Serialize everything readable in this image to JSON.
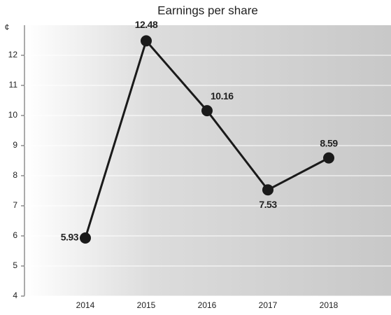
{
  "chart_data": {
    "type": "line",
    "title": "Earnings per share",
    "y_label": "¢",
    "categories": [
      "2014",
      "2015",
      "2016",
      "2017",
      "2018"
    ],
    "series": [
      {
        "name": "Earnings per share",
        "color": "#1a1a1a",
        "values": [
          5.93,
          12.48,
          10.16,
          7.53,
          8.59
        ]
      }
    ],
    "ylim": [
      4,
      13
    ],
    "yticks": [
      4,
      5,
      6,
      7,
      8,
      9,
      10,
      11,
      12
    ],
    "grid": true
  }
}
